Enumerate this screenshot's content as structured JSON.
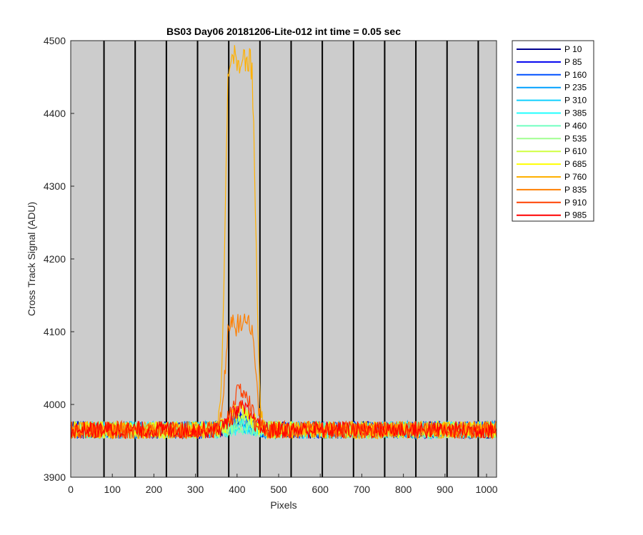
{
  "chart_data": {
    "type": "line",
    "title": "BS03 Day06 20181206-Lite-012 int time = 0.05 sec",
    "xlabel": "Pixels",
    "ylabel": "Cross Track Signal (ADU)",
    "xlim": [
      0,
      1024
    ],
    "ylim": [
      3900,
      4500
    ],
    "xticks": [
      "0",
      "100",
      "200",
      "300",
      "400",
      "500",
      "600",
      "700",
      "800",
      "900",
      "1000"
    ],
    "yticks": [
      "3900",
      "4000",
      "4100",
      "4200",
      "4300",
      "4400",
      "4500"
    ],
    "vertical_lines_x": [
      80,
      155,
      230,
      305,
      380,
      455,
      530,
      605,
      680,
      755,
      830,
      905,
      980
    ],
    "background": "#cccccc",
    "grid": false,
    "legend_position": "outside-right",
    "baseline": 3965,
    "noise_amplitude": 12,
    "series": [
      {
        "name": "P 10",
        "color": "#00008f",
        "peak": 3982,
        "flat_top": false
      },
      {
        "name": "P 85",
        "color": "#0000ef",
        "peak": 3980,
        "flat_top": false
      },
      {
        "name": "P 160",
        "color": "#0050ff",
        "peak": 3978,
        "flat_top": false
      },
      {
        "name": "P 235",
        "color": "#00a0ff",
        "peak": 3975,
        "flat_top": false
      },
      {
        "name": "P 310",
        "color": "#10d0ff",
        "peak": 3972,
        "flat_top": false
      },
      {
        "name": "P 385",
        "color": "#20ffff",
        "peak": 3970,
        "flat_top": false
      },
      {
        "name": "P 460",
        "color": "#70ffc0",
        "peak": 3970,
        "flat_top": false
      },
      {
        "name": "P 535",
        "color": "#a0ff90",
        "peak": 3975,
        "flat_top": false
      },
      {
        "name": "P 610",
        "color": "#d0ff40",
        "peak": 3985,
        "flat_top": false
      },
      {
        "name": "P 685",
        "color": "#ffff00",
        "peak": 3995,
        "flat_top": false
      },
      {
        "name": "P 760",
        "color": "#ffb000",
        "peak": 4470,
        "flat_top": true
      },
      {
        "name": "P 835",
        "color": "#ff7f00",
        "peak": 4110,
        "flat_top": true
      },
      {
        "name": "P 910",
        "color": "#ff4000",
        "peak": 4020,
        "flat_top": false
      },
      {
        "name": "P 985",
        "color": "#ff0000",
        "peak": 3995,
        "flat_top": false
      }
    ]
  }
}
